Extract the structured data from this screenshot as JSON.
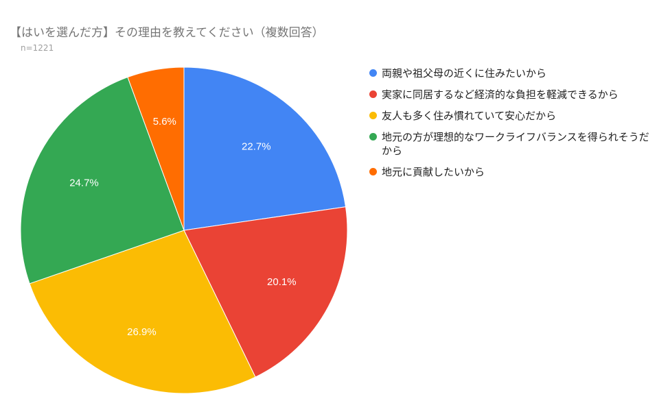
{
  "chart_data": {
    "type": "pie",
    "title": "【はいを選んだ方】その理由を教えてください（複数回答）",
    "subtitle": "n=1221",
    "categories": [
      "両親や祖父母の近くに住みたいから",
      "実家に同居するなど経済的な負担を軽減できるから",
      "友人も多く住み慣れていて安心だから",
      "地元の方が理想的なワークライフバランスを得られそうだから",
      "地元に貢献したいから"
    ],
    "values": [
      22.7,
      20.1,
      26.9,
      24.7,
      5.6
    ],
    "value_labels": [
      "22.7%",
      "20.1%",
      "26.9%",
      "24.7%",
      "5.6%"
    ],
    "colors": [
      "#4285f4",
      "#ea4335",
      "#fbbc04",
      "#34a853",
      "#ff6d01"
    ],
    "start_angle": "12 o'clock",
    "direction": "clockwise",
    "legend_position": "right"
  }
}
